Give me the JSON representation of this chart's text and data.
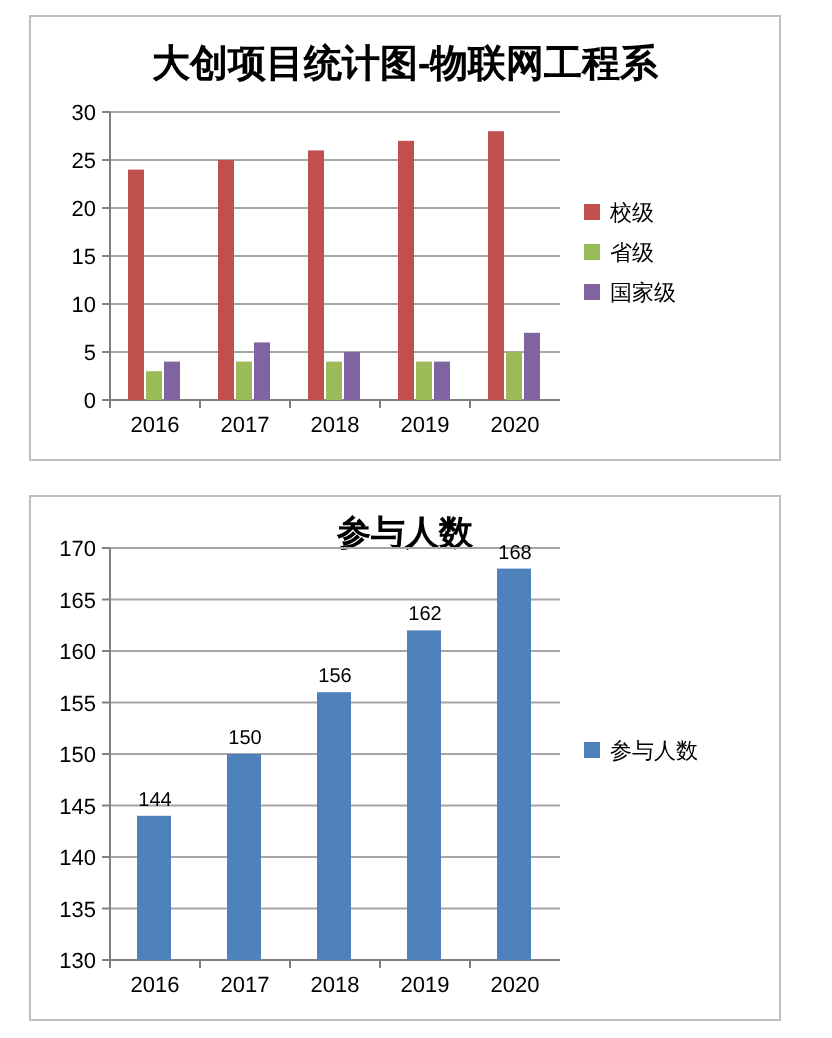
{
  "chart_data": [
    {
      "type": "bar",
      "title": "大创项目统计图-物联网工程系",
      "categories": [
        "2016",
        "2017",
        "2018",
        "2019",
        "2020"
      ],
      "series": [
        {
          "name": "校级",
          "color": "#c0504d",
          "values": [
            24,
            25,
            26,
            27,
            28
          ]
        },
        {
          "name": "省级",
          "color": "#9bbb59",
          "values": [
            3,
            4,
            4,
            4,
            5
          ]
        },
        {
          "name": "国家级",
          "color": "#8064a2",
          "values": [
            4,
            6,
            5,
            4,
            7
          ]
        }
      ],
      "ylim": [
        0,
        30
      ],
      "yticks": [
        0,
        5,
        10,
        15,
        20,
        25,
        30
      ],
      "grid": "y",
      "legend": "right"
    },
    {
      "type": "bar",
      "title": "参与人数",
      "categories": [
        "2016",
        "2017",
        "2018",
        "2019",
        "2020"
      ],
      "series": [
        {
          "name": "参与人数",
          "color": "#4f81bd",
          "values": [
            144,
            150,
            156,
            162,
            168
          ]
        }
      ],
      "ylim": [
        130,
        170
      ],
      "yticks": [
        130,
        135,
        140,
        145,
        150,
        155,
        160,
        165,
        170
      ],
      "grid": "y",
      "legend": "right",
      "data_labels": true
    }
  ]
}
